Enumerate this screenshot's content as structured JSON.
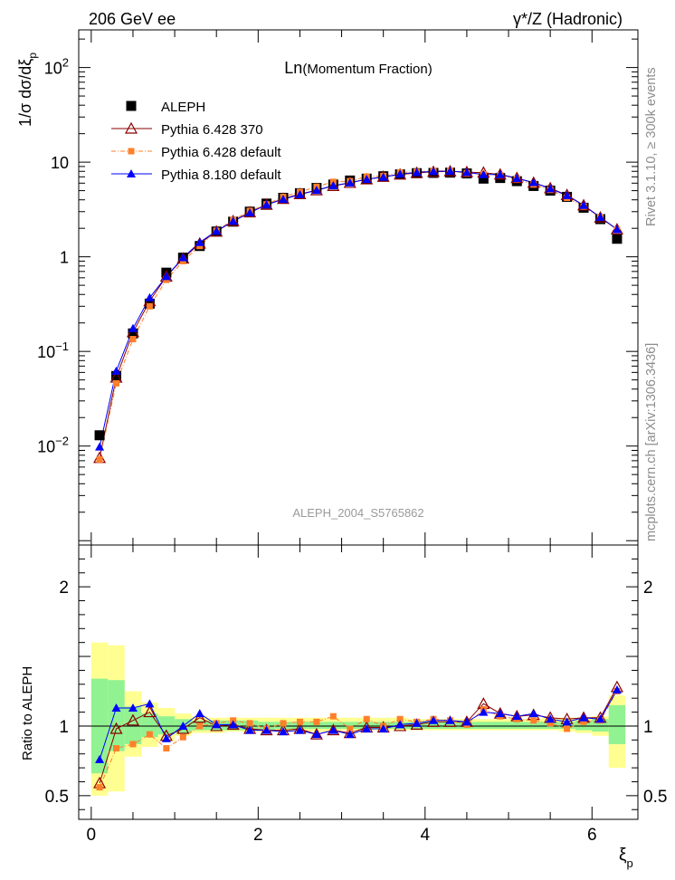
{
  "header": {
    "left": "206 GeV ee",
    "right": "γ*/Z (Hadronic)"
  },
  "side_labels": {
    "rivet": "Rivet 3.1.10, ≥ 300k events",
    "mcplots": "mcplots.cern.ch [arXiv:1306.3436]"
  },
  "colors": {
    "aleph": "#000000",
    "p6_370": "#8b0000",
    "p6_def": "#ff7f2a",
    "p8_def": "#0000ff",
    "band_green": "#91f291",
    "band_yellow": "#ffff91"
  },
  "chart_data": [
    {
      "type": "scatter",
      "name": "main",
      "title": "Ln(Momentum Fraction)",
      "title_main": "Ln",
      "title_sub": "(Momentum Fraction)",
      "ylabel": "1/σ dσ/dξ",
      "ylabel_sub": "p",
      "yscale": "log",
      "ylim": [
        0.0009,
        250
      ],
      "xlim": [
        -0.15,
        6.55
      ],
      "yticks": [
        {
          "value": 0.01,
          "base": "10",
          "exp": "−2"
        },
        {
          "value": 0.1,
          "base": "10",
          "exp": "−1"
        },
        {
          "value": 1,
          "base": "1",
          "exp": ""
        },
        {
          "value": 10,
          "base": "10",
          "exp": ""
        },
        {
          "value": 100,
          "base": "10",
          "exp": "2"
        }
      ],
      "annotation": "ALEPH_2004_S5765862",
      "x": [
        0.1,
        0.3,
        0.5,
        0.7,
        0.9,
        1.1,
        1.3,
        1.5,
        1.7,
        1.9,
        2.1,
        2.3,
        2.5,
        2.7,
        2.9,
        3.1,
        3.3,
        3.5,
        3.7,
        3.9,
        4.1,
        4.3,
        4.5,
        4.7,
        4.9,
        5.1,
        5.3,
        5.5,
        5.7,
        5.9,
        6.1,
        6.3
      ],
      "series": [
        {
          "name": "ALEPH",
          "key": "aleph",
          "marker": "square",
          "values": [
            0.013,
            0.055,
            0.155,
            0.32,
            0.68,
            0.98,
            1.3,
            1.85,
            2.35,
            3.0,
            3.65,
            4.2,
            4.7,
            5.35,
            5.8,
            6.4,
            6.7,
            7.1,
            7.45,
            7.65,
            7.7,
            7.75,
            7.6,
            6.7,
            6.8,
            6.3,
            5.6,
            5.0,
            4.3,
            3.3,
            2.5,
            1.55
          ]
        },
        {
          "name": "Pythia 6.428 370",
          "key": "p6_370",
          "marker": "open-triangle",
          "values": [
            0.0075,
            0.053,
            0.16,
            0.34,
            0.62,
            0.96,
            1.38,
            1.85,
            2.38,
            2.95,
            3.55,
            4.1,
            4.6,
            5.05,
            5.6,
            6.05,
            6.6,
            7.0,
            7.4,
            7.7,
            7.9,
            8.0,
            7.85,
            7.75,
            7.4,
            6.8,
            6.05,
            5.3,
            4.5,
            3.5,
            2.6,
            1.95
          ]
        },
        {
          "name": "Pythia 6.428 default",
          "key": "p6_def",
          "marker": "small-square",
          "values": [
            0.0072,
            0.046,
            0.135,
            0.3,
            0.57,
            0.9,
            1.3,
            1.88,
            2.45,
            3.05,
            3.58,
            4.3,
            4.85,
            5.5,
            6.2,
            6.3,
            7.05,
            7.15,
            7.8,
            7.9,
            8.1,
            8.1,
            7.65,
            7.5,
            7.3,
            6.6,
            5.8,
            5.1,
            4.2,
            3.4,
            2.6,
            1.93
          ]
        },
        {
          "name": "Pythia 8.180 default",
          "key": "p8_def",
          "marker": "triangle",
          "values": [
            0.0098,
            0.062,
            0.175,
            0.37,
            0.62,
            0.98,
            1.42,
            1.87,
            2.38,
            2.92,
            3.55,
            4.05,
            4.55,
            5.05,
            5.65,
            6.05,
            6.6,
            6.95,
            7.5,
            7.8,
            8.0,
            8.05,
            7.8,
            7.4,
            7.4,
            6.75,
            6.1,
            5.25,
            4.45,
            3.5,
            2.62,
            1.95
          ]
        }
      ]
    },
    {
      "type": "line",
      "name": "ratio",
      "ylabel": "Ratio to ALEPH",
      "xlabel": "ξ",
      "xlabel_sub": "p",
      "ylim": [
        0.33,
        2.3
      ],
      "xlim": [
        -0.15,
        6.55
      ],
      "yticks": [
        0.5,
        1,
        2
      ],
      "xticks": [
        0,
        2,
        4,
        6
      ],
      "x": [
        0.1,
        0.3,
        0.5,
        0.7,
        0.9,
        1.1,
        1.3,
        1.5,
        1.7,
        1.9,
        2.1,
        2.3,
        2.5,
        2.7,
        2.9,
        3.1,
        3.3,
        3.5,
        3.7,
        3.9,
        4.1,
        4.3,
        4.5,
        4.7,
        4.9,
        5.1,
        5.3,
        5.5,
        5.7,
        5.9,
        6.1,
        6.3
      ],
      "bands": {
        "edges": [
          0,
          0.2,
          0.4,
          0.6,
          0.8,
          1.0,
          1.2,
          1.4,
          1.6,
          1.8,
          2.0,
          2.2,
          2.4,
          2.6,
          2.8,
          3.0,
          3.2,
          3.4,
          3.6,
          3.8,
          4.0,
          4.2,
          4.4,
          4.6,
          4.8,
          5.0,
          5.2,
          5.4,
          5.6,
          5.8,
          6.0,
          6.2,
          6.4
        ],
        "yellow_lo": [
          0.5,
          0.53,
          0.78,
          0.85,
          0.89,
          0.93,
          0.95,
          0.95,
          0.96,
          0.96,
          0.96,
          0.96,
          0.96,
          0.96,
          0.96,
          0.97,
          0.97,
          0.97,
          0.97,
          0.97,
          0.97,
          0.97,
          0.97,
          0.97,
          0.97,
          0.97,
          0.97,
          0.97,
          0.96,
          0.95,
          0.93,
          0.7
        ],
        "yellow_hi": [
          1.6,
          1.58,
          1.25,
          1.17,
          1.13,
          1.09,
          1.07,
          1.06,
          1.06,
          1.06,
          1.06,
          1.06,
          1.06,
          1.06,
          1.06,
          1.06,
          1.06,
          1.06,
          1.06,
          1.05,
          1.05,
          1.05,
          1.05,
          1.05,
          1.05,
          1.05,
          1.05,
          1.06,
          1.06,
          1.06,
          1.07,
          1.22
        ],
        "green_lo": [
          0.66,
          0.82,
          0.87,
          0.92,
          0.94,
          0.95,
          0.97,
          0.97,
          0.97,
          0.97,
          0.97,
          0.98,
          0.98,
          0.98,
          0.98,
          0.98,
          0.98,
          0.98,
          0.98,
          0.98,
          0.98,
          0.98,
          0.98,
          0.98,
          0.98,
          0.98,
          0.98,
          0.98,
          0.98,
          0.97,
          0.96,
          0.87
        ],
        "green_hi": [
          1.34,
          1.33,
          1.14,
          1.09,
          1.07,
          1.05,
          1.04,
          1.04,
          1.04,
          1.04,
          1.03,
          1.03,
          1.03,
          1.03,
          1.03,
          1.03,
          1.03,
          1.03,
          1.03,
          1.03,
          1.03,
          1.03,
          1.03,
          1.03,
          1.03,
          1.03,
          1.03,
          1.03,
          1.03,
          1.04,
          1.05,
          1.15
        ]
      },
      "series": [
        {
          "name": "Pythia 6.428 370",
          "key": "p6_370",
          "marker": "open-triangle",
          "values": [
            0.59,
            0.98,
            1.04,
            1.1,
            0.93,
            0.98,
            1.06,
            1.0,
            1.01,
            0.98,
            0.97,
            0.97,
            0.98,
            0.94,
            0.97,
            0.95,
            0.99,
            0.99,
            1.0,
            1.01,
            1.03,
            1.03,
            1.03,
            1.16,
            1.09,
            1.07,
            1.08,
            1.06,
            1.05,
            1.06,
            1.06,
            1.28
          ]
        },
        {
          "name": "Pythia 6.428 default",
          "key": "p6_def",
          "marker": "small-square",
          "values": [
            0.56,
            0.84,
            0.87,
            0.94,
            0.84,
            0.92,
            1.0,
            1.02,
            1.04,
            1.02,
            0.98,
            1.02,
            1.03,
            1.03,
            1.07,
            0.98,
            1.05,
            1.0,
            1.05,
            1.03,
            1.05,
            1.04,
            1.01,
            1.12,
            1.07,
            1.05,
            1.04,
            1.02,
            0.98,
            1.03,
            1.04,
            1.25
          ]
        },
        {
          "name": "Pythia 8.180 default",
          "key": "p8_def",
          "marker": "triangle",
          "values": [
            0.76,
            1.13,
            1.13,
            1.16,
            0.91,
            1.0,
            1.09,
            1.01,
            1.01,
            0.97,
            0.97,
            0.96,
            0.97,
            0.94,
            0.97,
            0.94,
            0.98,
            0.98,
            1.01,
            1.02,
            1.04,
            1.04,
            1.03,
            1.1,
            1.09,
            1.07,
            1.09,
            1.05,
            1.03,
            1.06,
            1.05,
            1.26
          ]
        }
      ]
    }
  ]
}
